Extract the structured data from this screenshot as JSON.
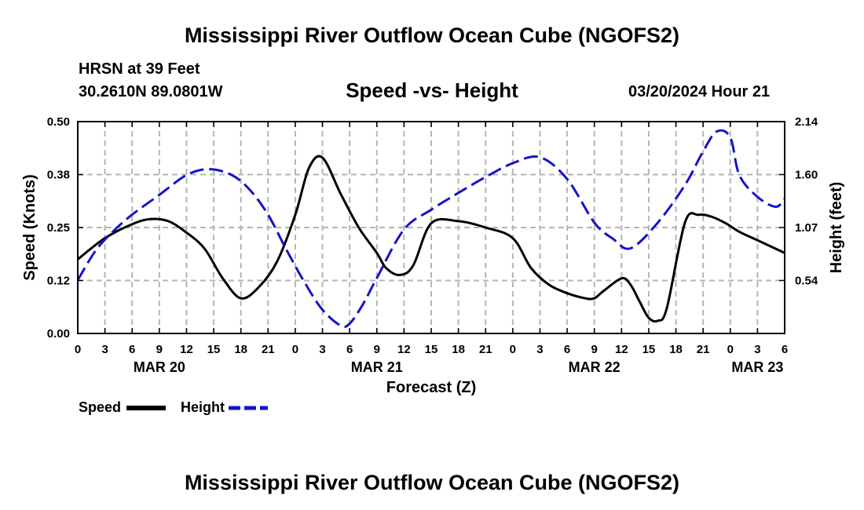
{
  "page_title": "Mississippi River Outflow Ocean Cube (NGOFS2)",
  "station": {
    "name": "HRSN at 39 Feet",
    "coords": "30.2610N  89.0801W",
    "issued": "03/20/2024 Hour 21"
  },
  "footer_title": "Mississippi River Outflow Ocean Cube (NGOFS2)",
  "legend": {
    "speed_label": "Speed",
    "height_label": "Height"
  },
  "colors": {
    "speed": "#000000",
    "height": "#1414c8",
    "grid": "#b4b4b4"
  },
  "chart_data": {
    "type": "line",
    "title": "Speed -vs- Height",
    "xlabel": "Forecast (Z)",
    "ylabel": "Speed (Knots)",
    "y2label": "Height (feet)",
    "x_unit": "hours from 03/20 00Z",
    "xlim": [
      0,
      78
    ],
    "ylim": [
      0.0,
      0.5
    ],
    "y2lim": [
      0.0,
      2.14
    ],
    "x_ticks": [
      0,
      3,
      6,
      9,
      12,
      15,
      18,
      21,
      24,
      27,
      30,
      33,
      36,
      39,
      42,
      45,
      48,
      51,
      54,
      57,
      60,
      63,
      66,
      69,
      72,
      75,
      78
    ],
    "x_tick_labels": [
      "0",
      "3",
      "6",
      "9",
      "12",
      "15",
      "18",
      "21",
      "0",
      "3",
      "6",
      "9",
      "12",
      "15",
      "18",
      "21",
      "0",
      "3",
      "6",
      "9",
      "12",
      "15",
      "18",
      "21",
      "0",
      "3",
      "6"
    ],
    "y_ticks": [
      0.0,
      0.125,
      0.25,
      0.375,
      0.5
    ],
    "y_tick_labels": [
      "0.00",
      "0.12",
      "0.25",
      "0.38",
      "0.50"
    ],
    "y2_ticks": [
      0.535,
      1.07,
      1.605,
      2.14
    ],
    "y2_tick_labels": [
      "0.54",
      "1.07",
      "1.60",
      "2.14"
    ],
    "date_labels": [
      {
        "label": "MAR 20",
        "x": 9
      },
      {
        "label": "MAR 21",
        "x": 33
      },
      {
        "label": "MAR 22",
        "x": 57
      },
      {
        "label": "MAR 23",
        "x": 75
      }
    ],
    "series": [
      {
        "name": "Speed",
        "axis": "left",
        "style": "solid",
        "x": [
          0,
          3,
          6,
          8,
          10,
          12,
          14,
          16,
          18,
          20,
          22,
          24,
          25.5,
          27,
          29,
          31,
          33,
          34,
          35.5,
          37,
          39,
          42,
          45,
          48,
          50,
          52,
          54,
          56,
          57,
          58,
          60,
          61,
          62,
          63,
          64,
          65,
          67,
          68.5,
          70,
          71.5,
          73,
          75,
          77,
          78
        ],
        "values": [
          0.175,
          0.225,
          0.258,
          0.27,
          0.265,
          0.238,
          0.2,
          0.13,
          0.083,
          0.11,
          0.17,
          0.28,
          0.39,
          0.415,
          0.33,
          0.25,
          0.19,
          0.155,
          0.138,
          0.16,
          0.26,
          0.265,
          0.25,
          0.225,
          0.155,
          0.115,
          0.095,
          0.083,
          0.083,
          0.1,
          0.13,
          0.115,
          0.075,
          0.037,
          0.03,
          0.06,
          0.262,
          0.28,
          0.275,
          0.26,
          0.24,
          0.22,
          0.2,
          0.19
        ]
      },
      {
        "name": "Height",
        "axis": "right",
        "style": "dashed",
        "x": [
          0,
          2,
          4,
          6,
          9,
          12,
          14.5,
          17,
          19,
          21,
          23,
          25,
          27,
          29,
          30,
          31.5,
          33,
          36,
          39,
          42,
          45,
          48,
          51,
          54,
          57,
          59,
          61,
          64,
          67,
          69,
          70.5,
          72,
          73,
          75,
          77,
          78
        ],
        "values": [
          0.54,
          0.84,
          1.04,
          1.2,
          1.4,
          1.6,
          1.66,
          1.6,
          1.45,
          1.2,
          0.85,
          0.52,
          0.24,
          0.08,
          0.1,
          0.3,
          0.56,
          1.05,
          1.25,
          1.42,
          1.58,
          1.72,
          1.78,
          1.56,
          1.12,
          0.96,
          0.86,
          1.12,
          1.5,
          1.84,
          2.04,
          1.98,
          1.6,
          1.38,
          1.28,
          1.36
        ]
      }
    ]
  }
}
